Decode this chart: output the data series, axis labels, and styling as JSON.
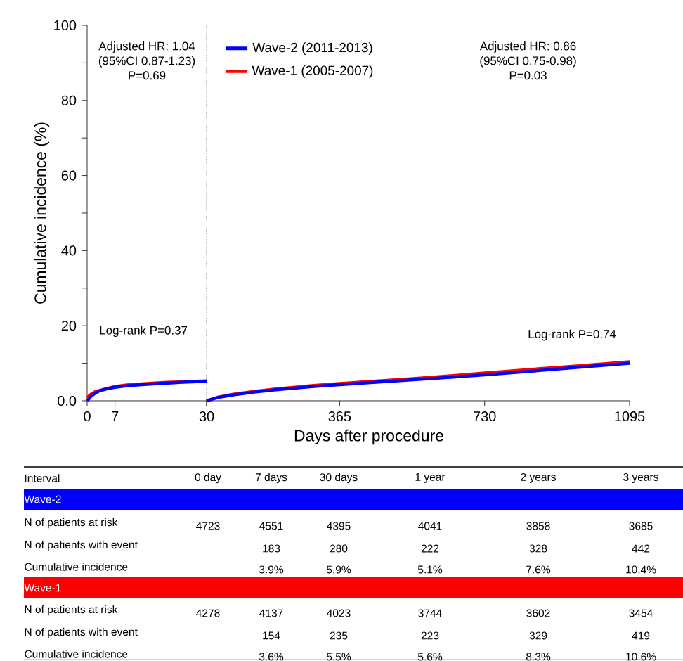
{
  "chart_data": [
    {
      "type": "line",
      "ylabel": "Cumulative incidence (%)",
      "xlim": [
        0,
        30
      ],
      "ylim": [
        0,
        100
      ],
      "xticks": [
        0,
        7,
        {
          "value": 30,
          "label": null
        }
      ],
      "yticks": [
        {
          "value": 0,
          "label": "0.0"
        },
        {
          "value": 10,
          "label": null
        },
        20,
        {
          "value": 30,
          "label": null
        },
        40,
        {
          "value": 50,
          "label": null
        },
        60,
        {
          "value": 70,
          "label": null
        },
        80,
        {
          "value": 90,
          "label": null
        },
        100
      ],
      "ref_lines": [
        {
          "axis": "x",
          "value": 30,
          "line_style": "dotted",
          "color": "#000000"
        }
      ],
      "annotations": [
        "Adjusted HR: 1.04",
        "(95%CI 0.87-1.23)",
        "P=0.69",
        "Log-rank P=0.37"
      ],
      "series": [
        {
          "color": "#0000ff",
          "x": [
            0,
            1,
            2,
            3,
            5,
            7,
            10,
            15,
            20,
            25,
            30
          ],
          "values": [
            0,
            1.2,
            2.0,
            2.6,
            3.2,
            3.6,
            4.0,
            4.4,
            4.7,
            5.0,
            5.2
          ]
        },
        {
          "color": "#ff0000",
          "x": [
            0,
            1,
            2,
            4,
            7,
            10,
            15,
            20,
            25,
            30
          ],
          "values": [
            0.8,
            1.8,
            2.4,
            3.0,
            3.8,
            4.2,
            4.6,
            4.9,
            5.1,
            5.3
          ]
        }
      ]
    },
    {
      "type": "line",
      "xlabel": "Days after procedure",
      "xlim": [
        30,
        1095
      ],
      "ylim": [
        0,
        100
      ],
      "xticks": [
        30,
        365,
        730,
        1095
      ],
      "tick_labels": "x",
      "legend": "top left",
      "annotations": [
        "Adjusted HR: 0.86",
        "(95%CI 0.75-0.98)",
        "P=0.03",
        "Log-rank P=0.74"
      ],
      "series": [
        {
          "name": "Wave-2 (2011-2013)",
          "color": "#0000ff",
          "x": [
            30,
            60,
            100,
            150,
            200,
            300,
            365,
            450,
            550,
            650,
            730,
            850,
            950,
            1095
          ],
          "values": [
            0,
            0.9,
            1.6,
            2.3,
            2.9,
            3.8,
            4.3,
            4.9,
            5.6,
            6.3,
            6.9,
            7.9,
            8.8,
            10.0
          ]
        },
        {
          "name": "Wave-1 (2005-2007)",
          "color": "#ff0000",
          "x": [
            30,
            60,
            100,
            150,
            200,
            300,
            365,
            450,
            550,
            650,
            730,
            850,
            950,
            1095
          ],
          "values": [
            0,
            1.0,
            1.8,
            2.5,
            3.1,
            4.1,
            4.6,
            5.2,
            5.9,
            6.7,
            7.4,
            8.4,
            9.2,
            10.4
          ]
        }
      ]
    },
    {
      "type": "other",
      "colors": [
        "#0000ff",
        "#ff0000"
      ],
      "annotations": [
        "Interval",
        "0 day",
        "7 days",
        "30 days",
        "1 year",
        "2 years",
        "3 years",
        "Wave-2",
        "N of patients at risk",
        "4723",
        "4551",
        "4395",
        "4041",
        "3858",
        "3685",
        "N of patients with event",
        "183",
        "280",
        "222",
        "328",
        "442",
        "Cumulative incidence",
        "3.9%",
        "5.9%",
        "5.1%",
        "7.6%",
        "10.4%",
        "Wave-1",
        "N of patients at risk",
        "4278",
        "4137",
        "4023",
        "3744",
        "3602",
        "3454",
        "N of patients with event",
        "154",
        "235",
        "223",
        "329",
        "419",
        "Cumulative incidence",
        "3.6%",
        "5.5%",
        "5.6%",
        "8.3%",
        "10.6%"
      ]
    }
  ]
}
